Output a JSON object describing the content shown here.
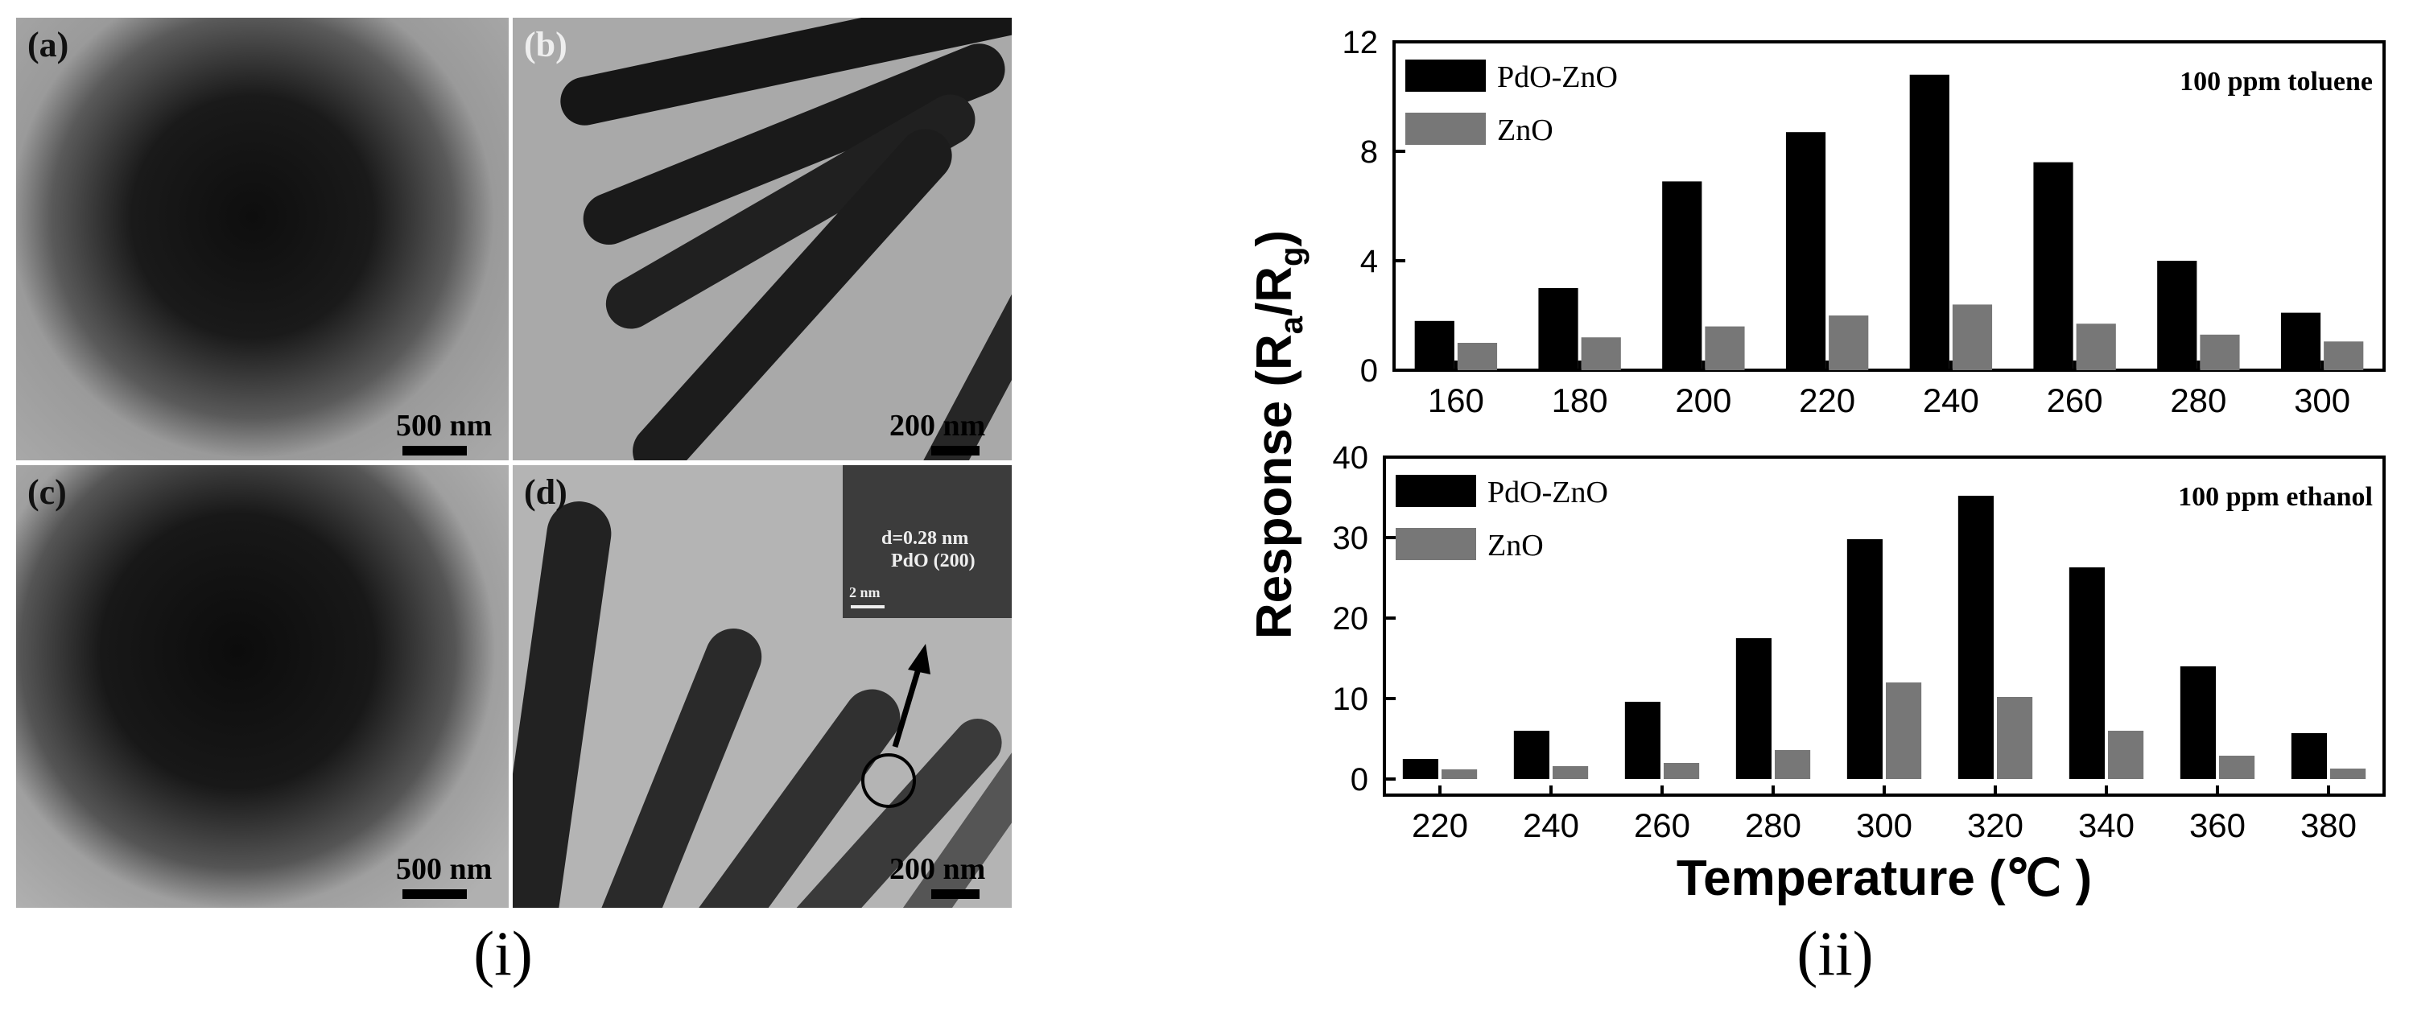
{
  "figure_labels": {
    "left": "(i)",
    "right": "(ii)"
  },
  "micrographs": {
    "a": {
      "label": "(a)",
      "scale": "500 nm"
    },
    "b": {
      "label": "(b)",
      "scale": "200 nm"
    },
    "c": {
      "label": "(c)",
      "scale": "500 nm"
    },
    "d": {
      "label": "(d)",
      "scale": "200 nm",
      "inset_d": "d=0.28 nm",
      "inset_plane": "PdO (200)",
      "inset_scale": "2 nm"
    }
  },
  "colors": {
    "pdo_zno": "#000000",
    "zno": "#777777",
    "axis": "#000000"
  },
  "chart_data": [
    {
      "type": "bar",
      "annotation": "100 ppm toluene",
      "categories": [
        "160",
        "180",
        "200",
        "220",
        "240",
        "260",
        "280",
        "300"
      ],
      "series": [
        {
          "name": "PdO-ZnO",
          "values": [
            1.8,
            3.0,
            6.9,
            8.7,
            10.8,
            7.6,
            4.0,
            2.1
          ]
        },
        {
          "name": "ZnO",
          "values": [
            1.0,
            1.2,
            1.6,
            2.0,
            2.4,
            1.7,
            1.3,
            1.05
          ]
        }
      ],
      "ylim": [
        0,
        12
      ],
      "yticks": [
        "0",
        "4",
        "8",
        "12"
      ]
    },
    {
      "type": "bar",
      "annotation": "100 ppm ethanol",
      "categories": [
        "220",
        "240",
        "260",
        "280",
        "300",
        "320",
        "340",
        "360",
        "380"
      ],
      "series": [
        {
          "name": "PdO-ZnO",
          "values": [
            2.5,
            6.0,
            9.6,
            17.5,
            29.8,
            35.2,
            26.3,
            14.0,
            5.7
          ]
        },
        {
          "name": "ZnO",
          "values": [
            1.2,
            1.6,
            2.0,
            3.6,
            12.0,
            10.2,
            6.0,
            2.9,
            1.3
          ]
        }
      ],
      "ylim": [
        -2,
        40
      ],
      "yticks": [
        "0",
        "10",
        "20",
        "30",
        "40"
      ]
    }
  ],
  "shared_axes": {
    "ylabel": "Response (Ra/Rg)",
    "xlabel": "Temperature (℃ )"
  }
}
